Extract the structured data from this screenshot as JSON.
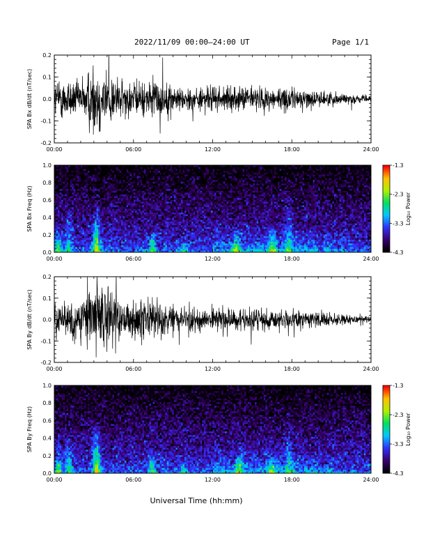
{
  "header": {
    "title": "2022/11/09  00:00–24:00 UT",
    "page": "Page 1/1"
  },
  "footer": {
    "xlabel": "Universal Time (hh:mm)"
  },
  "colors": {
    "trace": "#000000",
    "frame": "#000000"
  },
  "colorbar": {
    "label": "Log₁₀ Power",
    "ticks": [
      "-1.3",
      "-2.3",
      "-3.3",
      "-4.3"
    ],
    "values": [
      -1.3,
      -2.3,
      -3.3,
      -4.3
    ],
    "range": [
      -4.3,
      -1.3
    ],
    "colormap": [
      "#000000",
      "#3a0070",
      "#3030ff",
      "#00c8ff",
      "#00e060",
      "#b0f000",
      "#ffc000",
      "#ff0000"
    ]
  },
  "chart_data": [
    {
      "type": "line",
      "ylabel": "SPA Bx dB/dt (nT/sec)",
      "xlabel": "",
      "xlim": [
        0,
        24
      ],
      "ylim": [
        -0.2,
        0.2
      ],
      "x_ticks": [
        "00:00",
        "06:00",
        "12:00",
        "18:00",
        "24:00"
      ],
      "x_tick_values": [
        0,
        6,
        12,
        18,
        24
      ],
      "y_ticks": [
        "0.2",
        "0.1",
        "0.0",
        "-0.1",
        "-0.2"
      ],
      "y_tick_values": [
        0.2,
        0.1,
        0.0,
        -0.1,
        -0.2
      ],
      "series": [
        {
          "x": [
            0,
            1,
            2,
            3,
            4,
            5,
            6,
            7,
            8,
            9,
            10,
            11,
            12,
            13,
            14,
            15,
            16,
            17,
            18,
            19,
            20,
            21,
            22,
            23,
            24
          ],
          "amplitude": [
            0.1,
            0.11,
            0.09,
            0.2,
            0.16,
            0.1,
            0.09,
            0.09,
            0.1,
            0.07,
            0.06,
            0.06,
            0.07,
            0.06,
            0.06,
            0.07,
            0.06,
            0.06,
            0.06,
            0.05,
            0.04,
            0.035,
            0.03,
            0.02,
            0.015
          ]
        }
      ]
    },
    {
      "type": "heatmap",
      "ylabel": "SPA Bx Freq (Hz)",
      "xlim": [
        0,
        24
      ],
      "ylim": [
        0,
        1
      ],
      "x_ticks": [
        "00:00",
        "06:00",
        "12:00",
        "18:00",
        "24:00"
      ],
      "x_tick_values": [
        0,
        6,
        12,
        18,
        24
      ],
      "y_ticks": [
        "1.0",
        "0.8",
        "0.6",
        "0.4",
        "0.2",
        "0.0"
      ],
      "y_tick_values": [
        1.0,
        0.8,
        0.6,
        0.4,
        0.2,
        0.0
      ],
      "zlim": [
        -4.3,
        -1.3
      ],
      "bursts": [
        {
          "t": 0.3,
          "strength": 1.0,
          "fmax": 0.35
        },
        {
          "t": 1.1,
          "strength": 0.9,
          "fmax": 0.55
        },
        {
          "t": 3.2,
          "strength": 1.6,
          "fmax": 0.6
        },
        {
          "t": 7.4,
          "strength": 1.1,
          "fmax": 0.3
        },
        {
          "t": 9.8,
          "strength": 0.7,
          "fmax": 0.2
        },
        {
          "t": 13.8,
          "strength": 1.1,
          "fmax": 0.3
        },
        {
          "t": 16.5,
          "strength": 1.2,
          "fmax": 0.3
        },
        {
          "t": 17.8,
          "strength": 0.8,
          "fmax": 0.7
        },
        {
          "t": 20.8,
          "strength": 0.6,
          "fmax": 0.2
        }
      ]
    },
    {
      "type": "line",
      "ylabel": "SPA By dB/dt (nT/sec)",
      "xlabel": "",
      "xlim": [
        0,
        24
      ],
      "ylim": [
        -0.2,
        0.2
      ],
      "x_ticks": [
        "00:00",
        "06:00",
        "12:00",
        "18:00",
        "24:00"
      ],
      "x_tick_values": [
        0,
        6,
        12,
        18,
        24
      ],
      "y_ticks": [
        "0.2",
        "0.1",
        "0.0",
        "-0.1",
        "-0.2"
      ],
      "y_tick_values": [
        0.2,
        0.1,
        0.0,
        -0.1,
        -0.2
      ],
      "series": [
        {
          "x": [
            0,
            1,
            2,
            3,
            4,
            5,
            6,
            7,
            8,
            9,
            10,
            11,
            12,
            13,
            14,
            15,
            16,
            17,
            18,
            19,
            20,
            21,
            22,
            23,
            24
          ],
          "amplitude": [
            0.08,
            0.1,
            0.1,
            0.2,
            0.18,
            0.09,
            0.09,
            0.13,
            0.08,
            0.07,
            0.07,
            0.06,
            0.07,
            0.06,
            0.06,
            0.06,
            0.06,
            0.06,
            0.05,
            0.05,
            0.04,
            0.035,
            0.03,
            0.02,
            0.015
          ]
        }
      ]
    },
    {
      "type": "heatmap",
      "ylabel": "SPA By Freq (Hz)",
      "xlim": [
        0,
        24
      ],
      "ylim": [
        0,
        1
      ],
      "x_ticks": [
        "00:00",
        "06:00",
        "12:00",
        "18:00",
        "24:00"
      ],
      "x_tick_values": [
        0,
        6,
        12,
        18,
        24
      ],
      "y_ticks": [
        "1.0",
        "0.8",
        "0.6",
        "0.4",
        "0.2",
        "0.0"
      ],
      "y_tick_values": [
        1.0,
        0.8,
        0.6,
        0.4,
        0.2,
        0.0
      ],
      "zlim": [
        -4.3,
        -1.3
      ],
      "bursts": [
        {
          "t": 0.3,
          "strength": 1.0,
          "fmax": 0.35
        },
        {
          "t": 1.1,
          "strength": 0.9,
          "fmax": 0.5
        },
        {
          "t": 3.2,
          "strength": 1.6,
          "fmax": 0.6
        },
        {
          "t": 7.4,
          "strength": 1.1,
          "fmax": 0.3
        },
        {
          "t": 9.8,
          "strength": 0.7,
          "fmax": 0.2
        },
        {
          "t": 14.0,
          "strength": 1.2,
          "fmax": 0.35
        },
        {
          "t": 16.5,
          "strength": 1.1,
          "fmax": 0.25
        },
        {
          "t": 17.8,
          "strength": 0.7,
          "fmax": 0.6
        },
        {
          "t": 20.8,
          "strength": 0.6,
          "fmax": 0.2
        }
      ]
    }
  ]
}
